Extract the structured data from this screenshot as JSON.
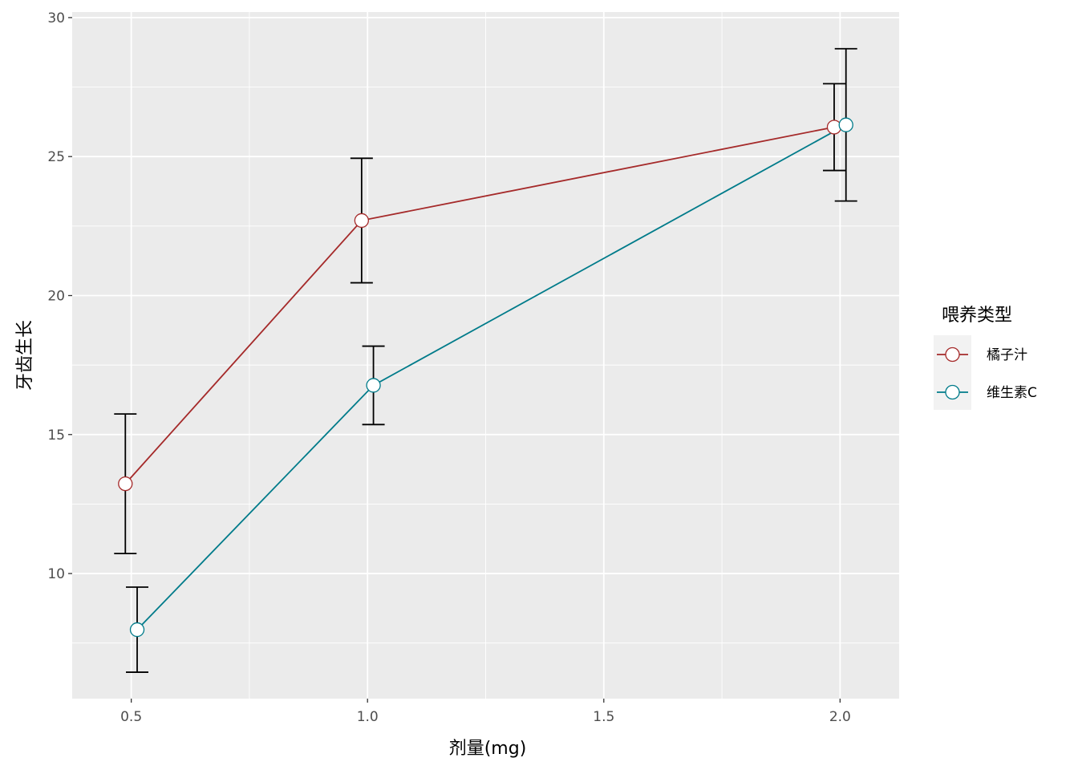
{
  "chart_data": {
    "type": "line",
    "title": "",
    "xlabel": "剂量(mg)",
    "ylabel": "牙齿生长",
    "x": [
      0.5,
      1.0,
      2.0
    ],
    "xticks": [
      "0.5",
      "1.0",
      "1.5",
      "2.0"
    ],
    "xtick_values": [
      0.5,
      1.0,
      1.5,
      2.0
    ],
    "yticks": [
      "10",
      "15",
      "20",
      "25",
      "30"
    ],
    "ytick_values": [
      10,
      15,
      20,
      25,
      30
    ],
    "xlim": [
      0.375,
      2.125
    ],
    "ylim": [
      5.5,
      30.2
    ],
    "grid": true,
    "legend": {
      "title": "喂养类型",
      "position": "right"
    },
    "series": [
      {
        "name": "橘子汁",
        "color": "#a52a2a",
        "x": [
          0.5,
          1.0,
          2.0
        ],
        "values": [
          13.23,
          22.7,
          26.06
        ],
        "error_low": [
          10.72,
          20.46,
          24.5
        ],
        "error_high": [
          15.74,
          24.94,
          27.62
        ]
      },
      {
        "name": "维生素C",
        "color": "#007b8a",
        "x": [
          0.5,
          1.0,
          2.0
        ],
        "values": [
          7.98,
          16.77,
          26.14
        ],
        "error_low": [
          6.45,
          15.36,
          23.4
        ],
        "error_high": [
          9.51,
          18.18,
          28.88
        ]
      }
    ]
  }
}
